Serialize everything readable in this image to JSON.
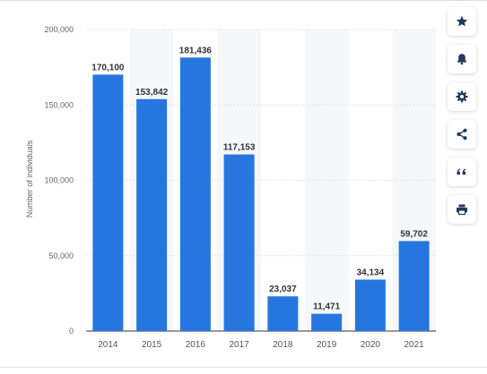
{
  "chart_data": {
    "type": "bar",
    "categories": [
      "2014",
      "2015",
      "2016",
      "2017",
      "2018",
      "2019",
      "2020",
      "2021"
    ],
    "values": [
      170100,
      153842,
      181436,
      117153,
      23037,
      11471,
      34134,
      59702
    ],
    "value_labels": [
      "170,100",
      "153,842",
      "181,436",
      "117,153",
      "23,037",
      "11,471",
      "34,134",
      "59,702"
    ],
    "ylabel": "Number of individuals",
    "xlabel": "",
    "title": "",
    "ylim": [
      0,
      200000
    ],
    "yticks": [
      0,
      50000,
      100000,
      150000,
      200000
    ],
    "ytick_labels": [
      "0",
      "50,000",
      "100,000",
      "150,000",
      "200,000"
    ],
    "grid": true,
    "legend": "none",
    "bar_color": "#2776e0"
  },
  "toolbar": {
    "buttons": [
      {
        "name": "favorite-button",
        "icon": "star-icon"
      },
      {
        "name": "notification-button",
        "icon": "bell-icon"
      },
      {
        "name": "settings-button",
        "icon": "gear-icon"
      },
      {
        "name": "share-button",
        "icon": "share-icon"
      },
      {
        "name": "cite-button",
        "icon": "quote-icon"
      },
      {
        "name": "print-button",
        "icon": "printer-icon"
      }
    ]
  }
}
